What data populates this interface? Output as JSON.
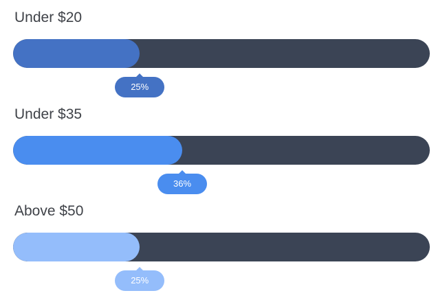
{
  "bars": [
    {
      "label": "Under $20",
      "percent_label": "25%",
      "value": 25,
      "fill_fraction": 0.304,
      "color": "#4472c4"
    },
    {
      "label": "Under $35",
      "percent_label": "36%",
      "value": 36,
      "fill_fraction": 0.406,
      "color": "#4a8def"
    },
    {
      "label": "Above $50",
      "percent_label": "25%",
      "value": 25,
      "fill_fraction": 0.304,
      "color": "#94bdfb"
    }
  ]
}
